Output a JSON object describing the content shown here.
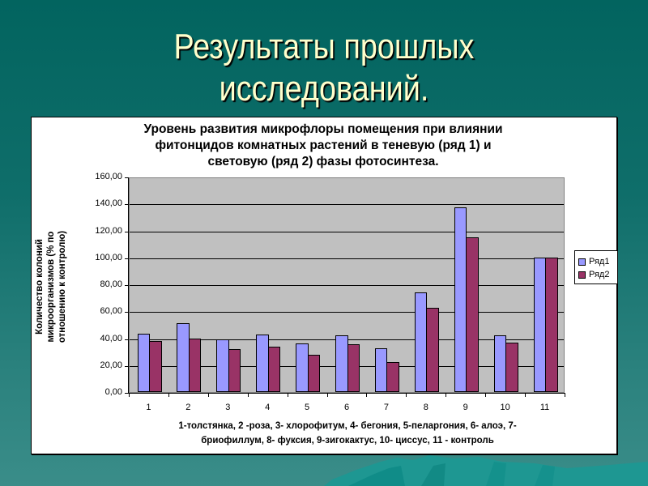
{
  "slide": {
    "title_line1": "Результаты прошлых",
    "title_line2": "исследований."
  },
  "colors": {
    "series1": "#9999ff",
    "series2": "#993366",
    "plot_bg": "#c0c0c0",
    "title_text": "#ffffcc"
  },
  "chart_data": {
    "type": "bar",
    "title": "Уровень развития микрофлоры помещения при влиянии фитонцидов комнатных растений в теневую (ряд 1)  и световую (ряд 2)  фазы фотосинтеза.",
    "title_lines": [
      "Уровень развития микрофлоры помещения при влиянии",
      "фитонцидов комнатных растений в теневую (ряд 1)  и",
      "световую (ряд 2)  фазы фотосинтеза."
    ],
    "xlabel": "1-толстянка, 2 -роза, 3- хлорофитум, 4- бегония, 5-пеларгония, 6- алоэ, 7-бриофиллум, 8- фуксия, 9-зигокактус, 10- циссус, 11 - контроль",
    "xlabel_lines": [
      "1-толстянка, 2 -роза, 3- хлорофитум, 4- бегония, 5-пеларгония, 6- алоэ, 7-",
      "бриофиллум, 8- фуксия, 9-зигокактус, 10- циссус, 11 - контроль"
    ],
    "ylabel": "Количество колоний микроорганизмов (% по отношению к контролю)",
    "ylabel_lines": [
      "Количество колоний",
      "микроорганизмов (% по",
      "отношению к контролю)"
    ],
    "ylim": [
      0,
      160
    ],
    "yticks": [
      "0,00",
      "20,00",
      "40,00",
      "60,00",
      "80,00",
      "100,00",
      "120,00",
      "140,00",
      "160,00"
    ],
    "grid": true,
    "legend_position": "right",
    "categories": [
      "1",
      "2",
      "3",
      "4",
      "5",
      "6",
      "7",
      "8",
      "9",
      "10",
      "11"
    ],
    "series": [
      {
        "name": "Ряд1",
        "values": [
          43.5,
          51.0,
          39.0,
          43.0,
          36.0,
          42.0,
          32.5,
          74.0,
          137.0,
          42.0,
          100.0
        ]
      },
      {
        "name": "Ряд2",
        "values": [
          38.0,
          39.5,
          32.0,
          33.5,
          27.5,
          35.5,
          22.0,
          62.5,
          115.0,
          36.5,
          100.0
        ]
      }
    ]
  }
}
